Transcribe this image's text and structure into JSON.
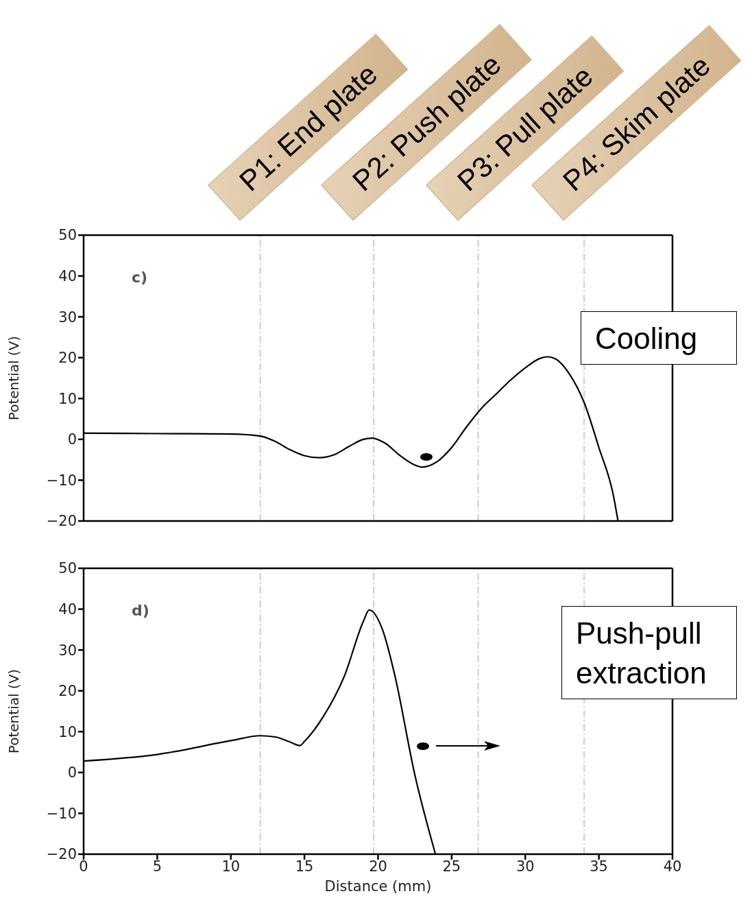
{
  "chart_data": [
    {
      "type": "line",
      "ylabel": "Potential (V)",
      "annotations": [
        "c)",
        "Cooling"
      ],
      "xlim": [
        0,
        40
      ],
      "xticks": [
        0,
        5,
        10,
        15,
        20,
        25,
        30,
        35,
        40
      ],
      "ylim": [
        -20,
        50
      ],
      "yticks": [
        -20,
        -10,
        0,
        10,
        20,
        30,
        40,
        50
      ],
      "tick_labels": "y",
      "marker": "none",
      "line_style": "solid",
      "series": [
        {
          "color": "#000000",
          "x": [
            0,
            5,
            10,
            12,
            13,
            14,
            15,
            16,
            17,
            18,
            19,
            19.6,
            20.5,
            21.5,
            22.5,
            23,
            24,
            25,
            26,
            27,
            28,
            29,
            30,
            31,
            31.5,
            32,
            33,
            34,
            35,
            36,
            36.3
          ],
          "values": [
            1.5,
            1.4,
            1.3,
            0.8,
            -0.5,
            -2.5,
            -4,
            -4.5,
            -3.8,
            -1.8,
            0,
            0.3,
            -1,
            -4,
            -6.3,
            -6.8,
            -5.5,
            -2,
            3,
            7.5,
            11,
            14.5,
            17.5,
            19.8,
            20.2,
            19.8,
            16,
            9,
            -2,
            -14,
            -20
          ]
        }
      ],
      "ref_lines": [
        {
          "axis": "x",
          "value": 12,
          "label": "P1: End plate",
          "color": "#cccccc",
          "line_style": "dashed"
        },
        {
          "axis": "x",
          "value": 19.7,
          "label": "P2: Push plate",
          "color": "#cccccc",
          "line_style": "dashed"
        },
        {
          "axis": "x",
          "value": 26.8,
          "label": "P3: Pull plate",
          "color": "#cccccc",
          "line_style": "dashed"
        },
        {
          "axis": "x",
          "value": 34,
          "label": "P4: Skim plate",
          "color": "#cccccc",
          "line_style": "dashed"
        }
      ]
    },
    {
      "type": "line",
      "xlabel": "Distance (mm)",
      "ylabel": "Potential (V)",
      "annotations": [
        "d)",
        "Push-pull extraction"
      ],
      "xlim": [
        0,
        40
      ],
      "xticks": [
        0,
        5,
        10,
        15,
        20,
        25,
        30,
        35,
        40
      ],
      "ylim": [
        -20,
        50
      ],
      "yticks": [
        -20,
        -10,
        0,
        10,
        20,
        30,
        40,
        50
      ],
      "marker": "none",
      "line_style": "solid",
      "series": [
        {
          "color": "#000000",
          "x": [
            0,
            5,
            10,
            12,
            13,
            14,
            14.7,
            15,
            16.3,
            17.7,
            19,
            19.4,
            20.3,
            21.1,
            22.5,
            23.9
          ],
          "values": [
            2.8,
            4.4,
            7.8,
            9,
            8.7,
            7.5,
            6.6,
            7.6,
            13.8,
            23.5,
            37,
            39.8,
            35,
            24.4,
            -0.6,
            -20
          ]
        }
      ],
      "ref_lines": [
        {
          "axis": "x",
          "value": 12,
          "color": "#cccccc",
          "line_style": "dashed"
        },
        {
          "axis": "x",
          "value": 19.7,
          "color": "#cccccc",
          "line_style": "dashed"
        },
        {
          "axis": "x",
          "value": 26.8,
          "color": "#cccccc",
          "line_style": "dashed"
        },
        {
          "axis": "x",
          "value": 34,
          "color": "#cccccc",
          "line_style": "dashed"
        }
      ]
    }
  ]
}
